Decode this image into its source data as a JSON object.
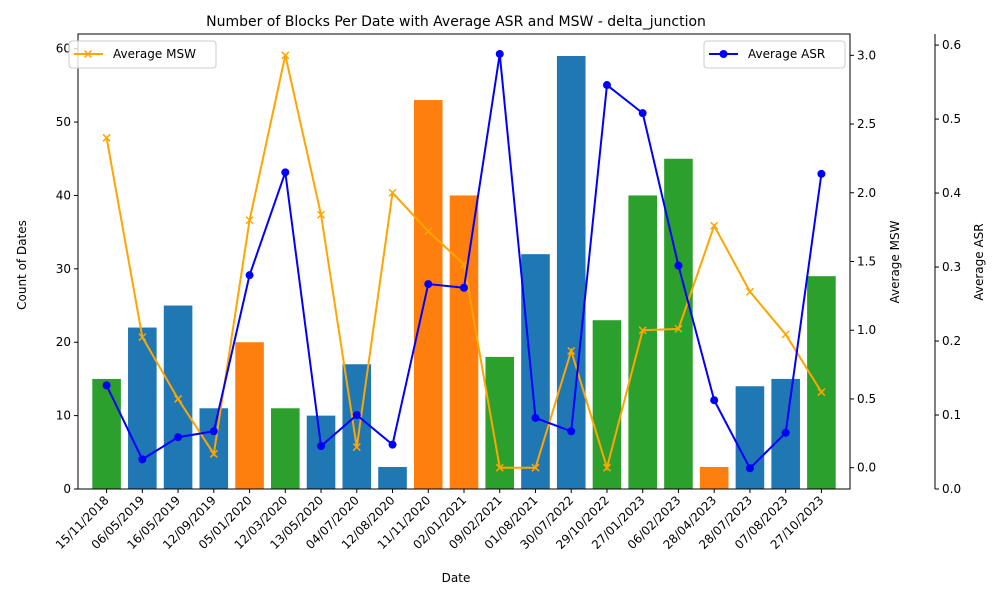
{
  "chart_data": {
    "type": "bar",
    "title": "Number of Blocks Per Date with Average ASR and MSW - delta_junction",
    "xlabel": "Date",
    "ylabel": "Count of Dates",
    "y2label": "Average MSW",
    "y3label": "Average ASR",
    "ylim": [
      0,
      62
    ],
    "y2lim": [
      -0.155,
      3.155
    ],
    "y3lim": [
      0,
      0.615
    ],
    "y_ticks": [
      0,
      10,
      20,
      30,
      40,
      50,
      60
    ],
    "y2_ticks": [
      0.0,
      0.5,
      1.0,
      1.5,
      2.0,
      2.5,
      3.0
    ],
    "y3_ticks": [
      0.0,
      0.1,
      0.2,
      0.3,
      0.4,
      0.5,
      0.6
    ],
    "y2_tick_labels": [
      "0.0",
      "0.5",
      "1.0",
      "1.5",
      "2.0",
      "2.5",
      "3.0"
    ],
    "y3_tick_labels": [
      "0.0",
      "0.1",
      "0.2",
      "0.3",
      "0.4",
      "0.5",
      "0.6"
    ],
    "categories": [
      "15/11/2018",
      "06/05/2019",
      "16/05/2019",
      "12/09/2019",
      "05/01/2020",
      "12/03/2020",
      "13/05/2020",
      "04/07/2020",
      "12/08/2020",
      "11/11/2020",
      "02/01/2021",
      "09/02/2021",
      "01/08/2021",
      "30/07/2022",
      "29/10/2022",
      "27/01/2023",
      "06/02/2023",
      "28/04/2023",
      "28/07/2023",
      "07/08/2023",
      "27/10/2023"
    ],
    "bars": {
      "values": [
        15,
        22,
        25,
        11,
        20,
        11,
        10,
        17,
        3,
        53,
        40,
        18,
        32,
        59,
        23,
        40,
        45,
        3,
        14,
        15,
        29
      ],
      "colors": [
        "#2ca02c",
        "#1f77b4",
        "#1f77b4",
        "#1f77b4",
        "#ff7f0e",
        "#2ca02c",
        "#1f77b4",
        "#1f77b4",
        "#1f77b4",
        "#ff7f0e",
        "#ff7f0e",
        "#2ca02c",
        "#1f77b4",
        "#1f77b4",
        "#2ca02c",
        "#2ca02c",
        "#2ca02c",
        "#ff7f0e",
        "#1f77b4",
        "#1f77b4",
        "#2ca02c"
      ]
    },
    "series": [
      {
        "name": "Average MSW",
        "axis": "y2",
        "color": "#ffa500",
        "marker": "x",
        "values": [
          2.4,
          0.95,
          0.5,
          0.1,
          1.8,
          3.0,
          1.84,
          0.15,
          2.0,
          1.72,
          1.48,
          0.0,
          0.0,
          0.85,
          0.0,
          1.0,
          1.01,
          1.76,
          1.28,
          0.97,
          0.55
        ]
      },
      {
        "name": "Average ASR",
        "axis": "y3",
        "color": "#0000ff",
        "marker": "o",
        "values": [
          0.14,
          0.04,
          0.07,
          0.078,
          0.289,
          0.428,
          0.058,
          0.1,
          0.06,
          0.277,
          0.272,
          0.588,
          0.096,
          0.078,
          0.546,
          0.508,
          0.302,
          0.12,
          0.028,
          0.076,
          0.426
        ]
      }
    ],
    "legend": {
      "left": {
        "placement": "top-left",
        "label": "Average MSW"
      },
      "right": {
        "placement": "top-right",
        "label": "Average ASR"
      }
    }
  }
}
